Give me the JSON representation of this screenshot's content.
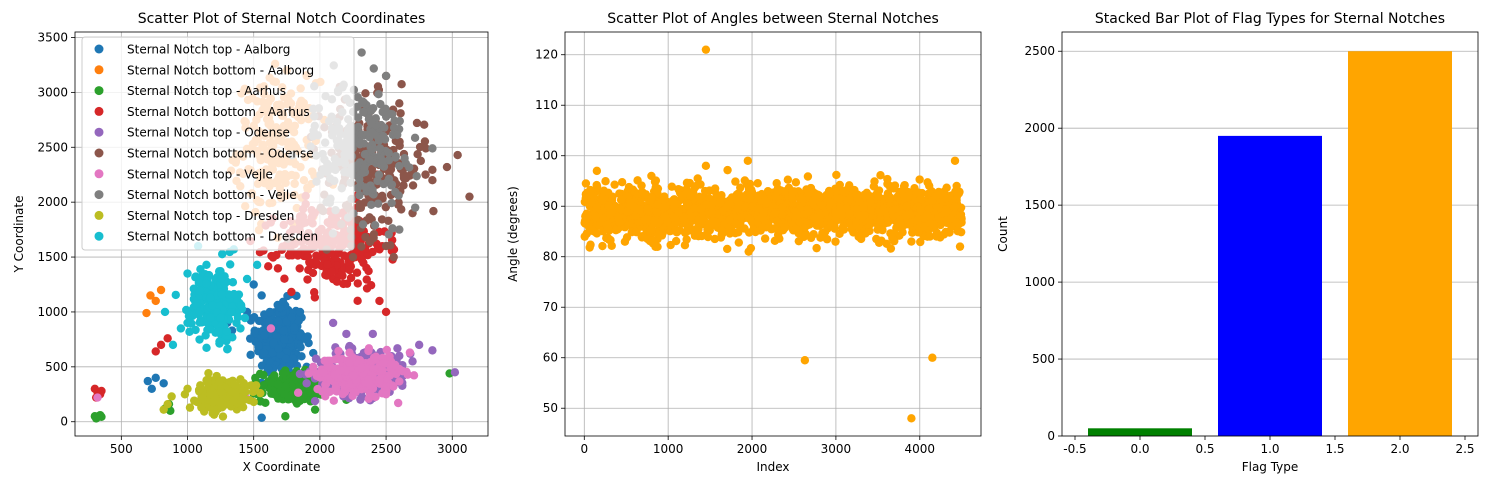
{
  "chart_data": [
    {
      "type": "scatter",
      "title": "Scatter Plot of Sternal Notch Coordinates",
      "xlabel": "X Coordinate",
      "ylabel": "Y Coordinate",
      "xlim": [
        150,
        3270
      ],
      "ylim": [
        -130,
        3550
      ],
      "xticks": [
        500,
        1000,
        1500,
        2000,
        2500,
        3000
      ],
      "yticks": [
        0,
        500,
        1000,
        1500,
        2000,
        2500,
        3000,
        3500
      ],
      "grid": true,
      "legend": "top-left",
      "series": [
        {
          "name": "Sternal Notch top - Aalborg",
          "color": "#1f77b4",
          "cx": 1700,
          "cy": 750,
          "sx": 90,
          "sy": 170,
          "n": 320,
          "points": [
            [
              1450,
              1000
            ],
            [
              1560,
              1150
            ],
            [
              1300,
              900
            ],
            [
              760,
              400
            ],
            [
              700,
              370
            ],
            [
              730,
              300
            ],
            [
              820,
              350
            ],
            [
              1500,
              1250
            ],
            [
              1900,
              500
            ],
            [
              1850,
              1000
            ]
          ]
        },
        {
          "name": "Sternal Notch bottom - Aalborg",
          "color": "#ff7f0e",
          "cx": 1680,
          "cy": 2500,
          "sx": 150,
          "sy": 300,
          "n": 220,
          "points": [
            [
              1750,
              3200
            ],
            [
              1900,
              3150
            ],
            [
              1650,
              3100
            ],
            [
              720,
              1150
            ],
            [
              800,
              1200
            ],
            [
              760,
              1100
            ],
            [
              690,
              990
            ],
            [
              1850,
              2900
            ],
            [
              1550,
              2000
            ],
            [
              1800,
              1800
            ]
          ]
        },
        {
          "name": "Sternal Notch top - Aarhus",
          "color": "#2ca02c",
          "cx": 1800,
          "cy": 320,
          "sx": 120,
          "sy": 70,
          "n": 220,
          "points": [
            [
              300,
              50
            ],
            [
              320,
              40
            ],
            [
              340,
              60
            ],
            [
              310,
              30
            ],
            [
              350,
              45
            ],
            [
              830,
              120
            ],
            [
              870,
              100
            ],
            [
              860,
              160
            ],
            [
              2980,
              440
            ],
            [
              2200,
              200
            ]
          ]
        },
        {
          "name": "Sternal Notch bottom - Aarhus",
          "color": "#d62728",
          "cx": 2100,
          "cy": 1600,
          "sx": 200,
          "sy": 190,
          "n": 250,
          "points": [
            [
              300,
              300
            ],
            [
              320,
              270
            ],
            [
              340,
              250
            ],
            [
              310,
              220
            ],
            [
              350,
              280
            ],
            [
              800,
              700
            ],
            [
              850,
              760
            ],
            [
              760,
              640
            ],
            [
              2500,
              1000
            ],
            [
              2450,
              1100
            ]
          ]
        },
        {
          "name": "Sternal Notch top - Odense",
          "color": "#9467bd",
          "cx": 2330,
          "cy": 450,
          "sx": 180,
          "sy": 110,
          "n": 220,
          "points": [
            [
              2700,
              550
            ],
            [
              2850,
              650
            ],
            [
              3020,
              450
            ],
            [
              2200,
              800
            ],
            [
              2100,
              900
            ],
            [
              2500,
              300
            ],
            [
              2600,
              600
            ],
            [
              1900,
              350
            ],
            [
              2750,
              700
            ],
            [
              2400,
              800
            ]
          ]
        },
        {
          "name": "Sternal Notch bottom - Odense",
          "color": "#8c564b",
          "cx": 2400,
          "cy": 2300,
          "sx": 200,
          "sy": 300,
          "n": 200,
          "points": [
            [
              3130,
              2050
            ],
            [
              2960,
              2320
            ],
            [
              2800,
              2490
            ],
            [
              2600,
              2900
            ],
            [
              2500,
              3150
            ],
            [
              2150,
              3050
            ],
            [
              2700,
              1900
            ],
            [
              2500,
              1600
            ],
            [
              2250,
              1500
            ],
            [
              2850,
              2200
            ]
          ]
        },
        {
          "name": "Sternal Notch top - Vejle",
          "color": "#e377c2",
          "cx": 2280,
          "cy": 430,
          "sx": 150,
          "sy": 90,
          "n": 260,
          "points": [
            [
              1630,
              850
            ],
            [
              320,
              220
            ],
            [
              1440,
              220
            ],
            [
              2680,
              630
            ],
            [
              2500,
              250
            ],
            [
              2050,
              280
            ],
            [
              2600,
              480
            ],
            [
              1950,
              500
            ]
          ]
        },
        {
          "name": "Sternal Notch bottom - Vejle",
          "color": "#7f7f7f",
          "cx": 2300,
          "cy": 2500,
          "sx": 170,
          "sy": 300,
          "n": 220,
          "points": [
            [
              2850,
              2490
            ],
            [
              2640,
              2400
            ],
            [
              2600,
              1750
            ],
            [
              2500,
              3150
            ],
            [
              2180,
              3070
            ],
            [
              1950,
              2850
            ],
            [
              2720,
              1950
            ],
            [
              2050,
              2000
            ]
          ]
        },
        {
          "name": "Sternal Notch top - Dresden",
          "color": "#bcbd22",
          "cx": 1260,
          "cy": 250,
          "sx": 90,
          "sy": 70,
          "n": 240,
          "points": [
            [
              820,
              110
            ],
            [
              850,
              160
            ],
            [
              980,
              250
            ],
            [
              1500,
              180
            ],
            [
              1550,
              260
            ],
            [
              880,
              230
            ],
            [
              1000,
              300
            ]
          ]
        },
        {
          "name": "Sternal Notch bottom - Dresden",
          "color": "#17becf",
          "cx": 1200,
          "cy": 1080,
          "sx": 90,
          "sy": 160,
          "n": 240,
          "points": [
            [
              830,
              1000
            ],
            [
              950,
              850
            ],
            [
              1000,
              1350
            ],
            [
              1080,
              1600
            ],
            [
              1350,
              1570
            ],
            [
              1450,
              1300
            ],
            [
              890,
              700
            ],
            [
              1300,
              660
            ],
            [
              1000,
              900
            ],
            [
              1400,
              850
            ]
          ]
        }
      ]
    },
    {
      "type": "scatter",
      "title": "Scatter Plot of Angles between Sternal Notches",
      "xlabel": "Index",
      "ylabel": "Angle (degrees)",
      "xlim": [
        -230,
        4730
      ],
      "ylim": [
        44.5,
        124.5
      ],
      "xticks": [
        0,
        1000,
        2000,
        3000,
        4000
      ],
      "yticks": [
        50,
        60,
        70,
        80,
        90,
        100,
        110,
        120
      ],
      "grid": true,
      "color": "#ffa500",
      "bulk": {
        "index_range": [
          0,
          4500
        ],
        "mean": 89,
        "sd": 2.4,
        "n": 1800
      },
      "points": [
        [
          1450,
          121
        ],
        [
          1450,
          98
        ],
        [
          1950,
          99
        ],
        [
          1960,
          81
        ],
        [
          2630,
          59.5
        ],
        [
          4150,
          60
        ],
        [
          3900,
          48
        ],
        [
          4420,
          99
        ],
        [
          4480,
          82
        ],
        [
          4200,
          84
        ],
        [
          3900,
          83
        ],
        [
          150,
          97
        ],
        [
          800,
          96
        ]
      ]
    },
    {
      "type": "bar",
      "title": "Stacked Bar Plot of Flag Types for Sternal Notches",
      "xlabel": "Flag Type",
      "ylabel": "Count",
      "xlim": [
        -0.6,
        2.6
      ],
      "ylim": [
        0,
        2625
      ],
      "xticks": [
        -0.5,
        0.0,
        0.5,
        1.0,
        1.5,
        2.0,
        2.5
      ],
      "yticks": [
        0,
        500,
        1000,
        1500,
        2000,
        2500
      ],
      "grid": "y",
      "categories": [
        0,
        1,
        2
      ],
      "values": [
        50,
        1950,
        2500
      ],
      "colors": [
        "#008000",
        "#0000ff",
        "#ffa500"
      ]
    }
  ]
}
